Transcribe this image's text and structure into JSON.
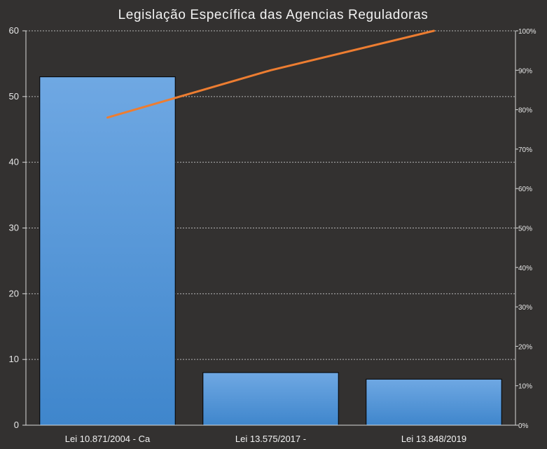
{
  "chart_data": {
    "type": "bar",
    "title": "Legislação Específica das Agencias Reguladoras",
    "categories": [
      "Lei 10.871/2004 - Ca",
      "Lei 13.575/2017 -",
      "Lei 13.848/2019"
    ],
    "series": [
      {
        "values": [
          53,
          8,
          7
        ],
        "kind": "bar",
        "axis": "primary"
      },
      {
        "values": [
          78,
          90,
          100
        ],
        "kind": "line",
        "axis": "secondary",
        "unit": "%"
      }
    ],
    "y_ticks": [
      "0",
      "10",
      "20",
      "30",
      "40",
      "50",
      "60"
    ],
    "ylim": [
      0,
      60
    ],
    "y2_ticks": [
      "0%",
      "10%",
      "20%",
      "30%",
      "40%",
      "50%",
      "60%",
      "70%",
      "80%",
      "90%",
      "100%"
    ],
    "y2lim": [
      0,
      100
    ],
    "grid": true,
    "legend": "none",
    "colors": {
      "background": "#333130",
      "bar_top": "#6fa8e3",
      "bar_bottom": "#3f86cc",
      "line": "#ed7d31",
      "grid": "#b5b5b5",
      "axis": "#d9d9d9",
      "text": "#f2f2f2"
    }
  }
}
